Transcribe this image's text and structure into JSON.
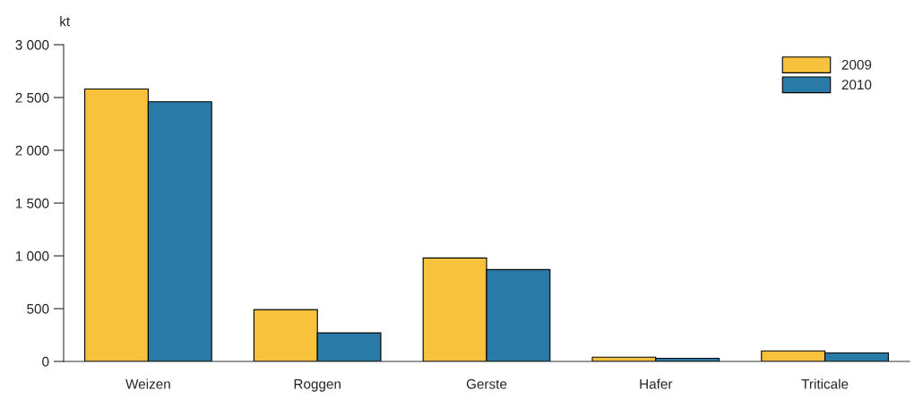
{
  "chart_data": {
    "type": "bar",
    "ylabel": "kt",
    "categories": [
      "Weizen",
      "Roggen",
      "Gerste",
      "Hafer",
      "Triticale"
    ],
    "series": [
      {
        "name": "2009",
        "color": "#f9c23c",
        "values": [
          2580,
          490,
          980,
          40,
          100
        ]
      },
      {
        "name": "2010",
        "color": "#2a7aa8",
        "values": [
          2460,
          270,
          870,
          30,
          80
        ]
      }
    ],
    "ylim": [
      0,
      3000
    ],
    "yticks": [
      0,
      500,
      {
        "value": 1000,
        "label": "1 000"
      },
      {
        "value": 1500,
        "label": "1 500"
      },
      {
        "value": 2000,
        "label": "2 000"
      },
      {
        "value": 2500,
        "label": "2 500"
      },
      {
        "value": 3000,
        "label": "3 000"
      }
    ],
    "grid": false,
    "legend": "top right"
  }
}
